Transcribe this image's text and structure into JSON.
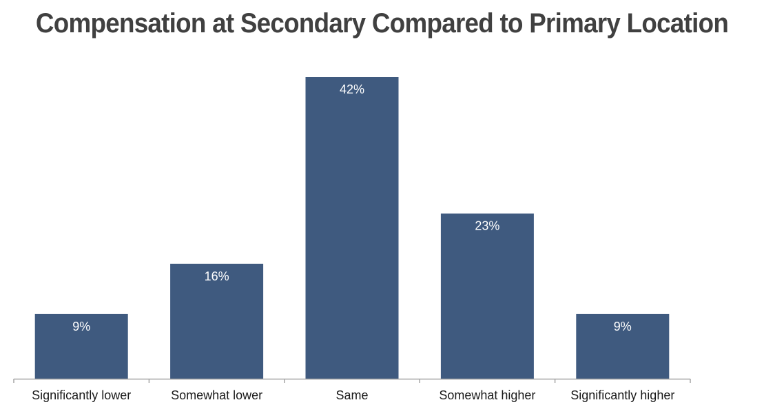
{
  "chart_data": {
    "type": "bar",
    "title": "Compensation at Secondary Compared to Primary Location",
    "categories": [
      "Significantly lower",
      "Somewhat lower",
      "Same",
      "Somewhat higher",
      "Significantly higher"
    ],
    "values": [
      9,
      16,
      42,
      23,
      9
    ],
    "data_labels": [
      "9%",
      "16%",
      "42%",
      "23%",
      "9%"
    ],
    "xlabel": "",
    "ylabel": "",
    "ylim": [
      0,
      42
    ],
    "grid": false,
    "legend": "none",
    "colors": {
      "bar": "#3F5A7F",
      "axis": "#A6A6A6",
      "title": "#404040"
    }
  }
}
